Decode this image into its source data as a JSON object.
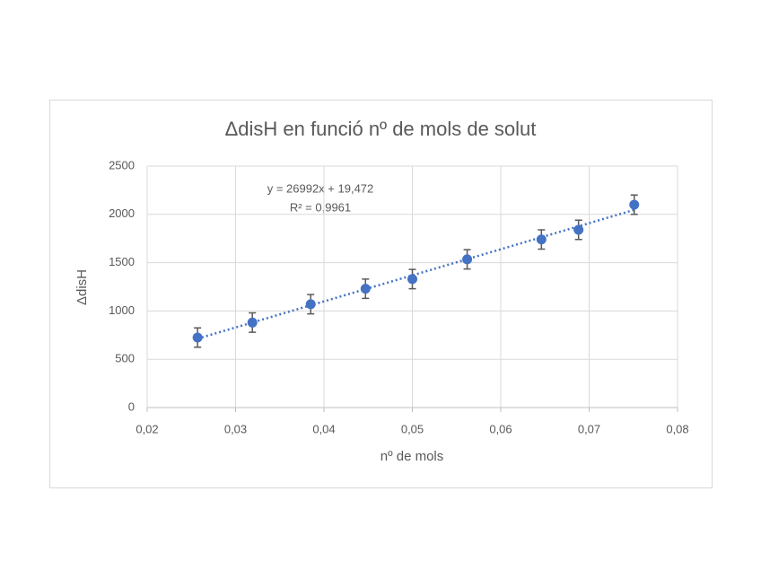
{
  "chart_data": {
    "type": "scatter",
    "title": "ΔdisH en funció nº de mols de solut",
    "x_label": "nº de mols",
    "y_label": "ΔdisH",
    "x": [
      0.0257,
      0.0319,
      0.0385,
      0.0447,
      0.05,
      0.0562,
      0.0646,
      0.0688,
      0.0751
    ],
    "values": [
      725,
      880,
      1070,
      1230,
      1330,
      1535,
      1740,
      1840,
      2100
    ],
    "errors": [
      100,
      100,
      100,
      100,
      100,
      100,
      100,
      100,
      100
    ],
    "color": "#4472c4",
    "error_color": "#595959",
    "xlim": [
      0.02,
      0.08
    ],
    "xticks": [
      {
        "value": 0.02,
        "label": "0,02"
      },
      {
        "value": 0.03,
        "label": "0,03"
      },
      {
        "value": 0.04,
        "label": "0,04"
      },
      {
        "value": 0.05,
        "label": "0,05"
      },
      {
        "value": 0.06,
        "label": "0,06"
      },
      {
        "value": 0.07,
        "label": "0,07"
      },
      {
        "value": 0.08,
        "label": "0,08"
      }
    ],
    "ylim": [
      0,
      2500
    ],
    "yticks": [
      0,
      500,
      1000,
      1500,
      2000,
      2500
    ],
    "grid": true,
    "trendline": {
      "slope": 26992,
      "intercept": 19.472,
      "equation": "y = 26992x + 19,472",
      "r2": "R² = 0,9961"
    }
  }
}
